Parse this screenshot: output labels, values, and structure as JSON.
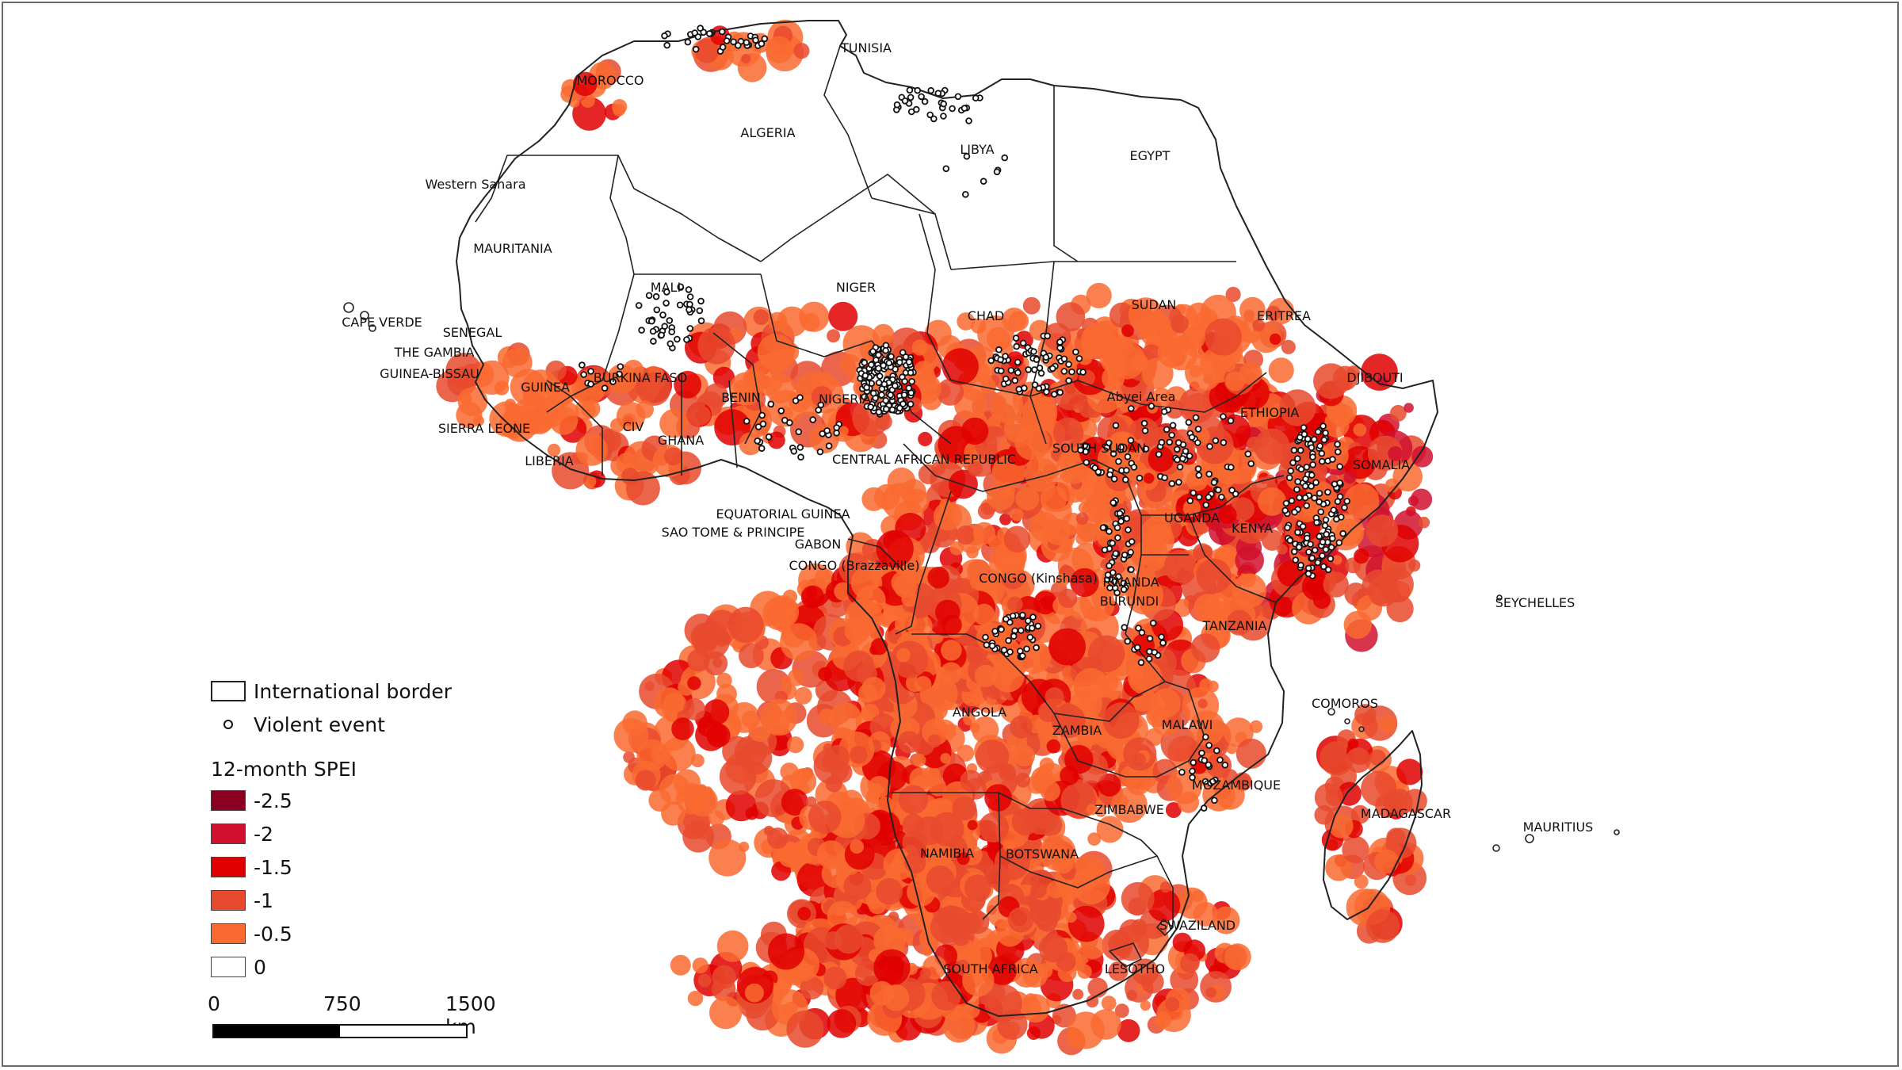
{
  "map": {
    "country_labels": [
      {
        "id": "tunisia",
        "text": "TUNISIA"
      },
      {
        "id": "morocco",
        "text": "MOROCCO"
      },
      {
        "id": "algeria",
        "text": "ALGERIA"
      },
      {
        "id": "libya",
        "text": "LIBYA"
      },
      {
        "id": "egypt",
        "text": "EGYPT"
      },
      {
        "id": "western-sahara",
        "text": "Western Sahara"
      },
      {
        "id": "mauritania",
        "text": "MAURITANIA"
      },
      {
        "id": "mali",
        "text": "MALI"
      },
      {
        "id": "niger",
        "text": "NIGER"
      },
      {
        "id": "chad",
        "text": "CHAD"
      },
      {
        "id": "sudan",
        "text": "SUDAN"
      },
      {
        "id": "eritrea",
        "text": "ERITREA"
      },
      {
        "id": "cape-verde",
        "text": "CAPE VERDE"
      },
      {
        "id": "senegal",
        "text": "SENEGAL"
      },
      {
        "id": "the-gambia",
        "text": "THE GAMBIA"
      },
      {
        "id": "guinea-bissau",
        "text": "GUINEA-BISSAU"
      },
      {
        "id": "burkina-faso",
        "text": "BURKINA FASO"
      },
      {
        "id": "guinea",
        "text": "GUINEA"
      },
      {
        "id": "benin",
        "text": "BENIN"
      },
      {
        "id": "nigeria",
        "text": "NIGERIA"
      },
      {
        "id": "abyei-area",
        "text": "Abyei Area"
      },
      {
        "id": "djibouti",
        "text": "DJIBOUTI"
      },
      {
        "id": "ethiopia",
        "text": "ETHIOPIA"
      },
      {
        "id": "sierra-leone",
        "text": "SIERRA LEONE"
      },
      {
        "id": "civ",
        "text": "CIV"
      },
      {
        "id": "ghana",
        "text": "GHANA"
      },
      {
        "id": "liberia",
        "text": "LIBERIA"
      },
      {
        "id": "central-african-republic",
        "text": "CENTRAL AFRICAN REPUBLIC"
      },
      {
        "id": "south-sudan",
        "text": "SOUTH SUDAN"
      },
      {
        "id": "somalia",
        "text": "SOMALIA"
      },
      {
        "id": "equatorial-guinea",
        "text": "EQUATORIAL GUINEA"
      },
      {
        "id": "sao-tome",
        "text": "SAO TOME & PRINCIPE"
      },
      {
        "id": "uganda",
        "text": "UGANDA"
      },
      {
        "id": "kenya",
        "text": "KENYA"
      },
      {
        "id": "gabon",
        "text": "GABON"
      },
      {
        "id": "congo-brazzaville",
        "text": "CONGO (Brazzaville)"
      },
      {
        "id": "congo-kinshasa",
        "text": "CONGO (Kinshasa)"
      },
      {
        "id": "rwanda",
        "text": "RWANDA"
      },
      {
        "id": "burundi",
        "text": "BURUNDI"
      },
      {
        "id": "seychelles",
        "text": "SEYCHELLES"
      },
      {
        "id": "tanzania",
        "text": "TANZANIA"
      },
      {
        "id": "comoros",
        "text": "COMOROS"
      },
      {
        "id": "angola",
        "text": "ANGOLA"
      },
      {
        "id": "zambia",
        "text": "ZAMBIA"
      },
      {
        "id": "malawi",
        "text": "MALAWI"
      },
      {
        "id": "mozambique",
        "text": "MOZAMBIQUE"
      },
      {
        "id": "zimbabwe",
        "text": "ZIMBABWE"
      },
      {
        "id": "madagascar",
        "text": "MADAGASCAR"
      },
      {
        "id": "mauritius",
        "text": "MAURITIUS"
      },
      {
        "id": "namibia",
        "text": "NAMIBIA"
      },
      {
        "id": "botswana",
        "text": "BOTSWANA"
      },
      {
        "id": "swaziland",
        "text": "SWAZILAND"
      },
      {
        "id": "south-africa",
        "text": "SOUTH AFRICA"
      },
      {
        "id": "lesotho",
        "text": "LESOTHO"
      }
    ]
  },
  "legend": {
    "border_label": "International border",
    "event_label": "Violent event",
    "spei_title": "12-month SPEI",
    "classes": [
      {
        "value": "-2.5",
        "color": "#8b0020"
      },
      {
        "value": "-2",
        "color": "#d0102e"
      },
      {
        "value": "-1.5",
        "color": "#e00000"
      },
      {
        "value": "-1",
        "color": "#e84a2e"
      },
      {
        "value": "-0.5",
        "color": "#f96a30"
      },
      {
        "value": "0",
        "color": "#ffffff"
      }
    ]
  },
  "scalebar": {
    "labels": [
      "0",
      "750",
      "1500 km"
    ]
  }
}
